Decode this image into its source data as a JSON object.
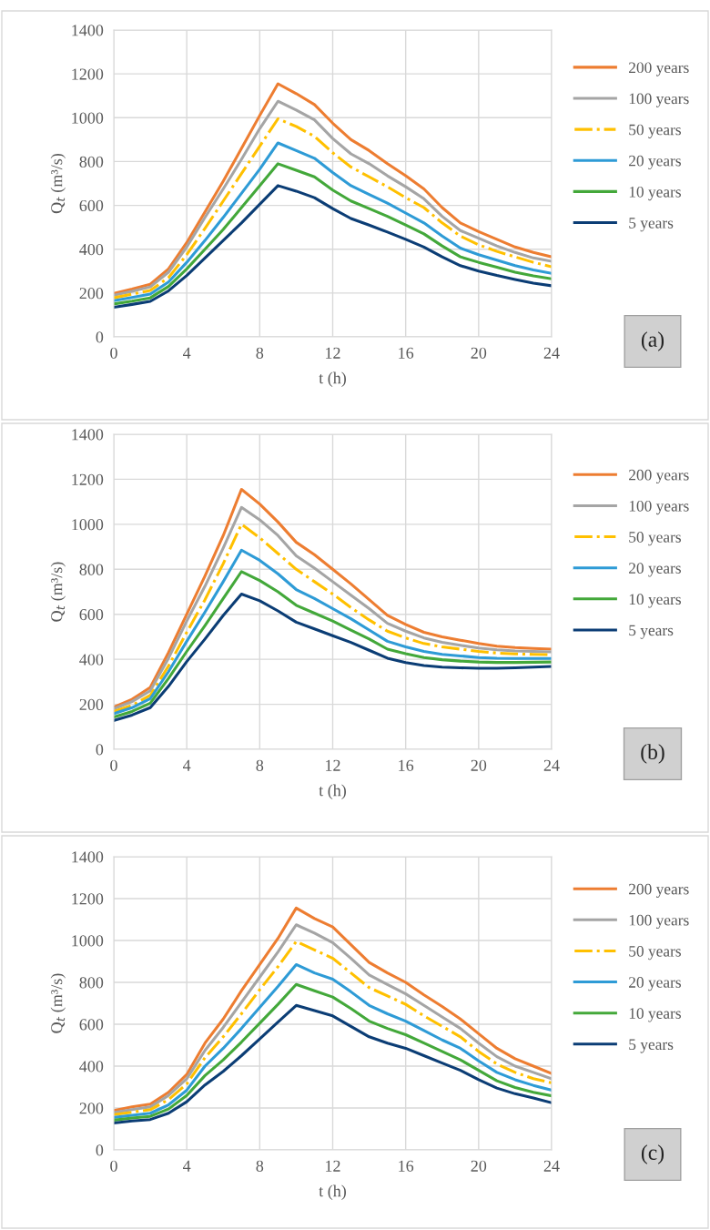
{
  "chart_data": [
    {
      "type": "line",
      "xlabel": "t (h)",
      "ylabel": "Q$_{t}$ (m³/s)",
      "xlim": [
        0,
        24
      ],
      "xticks": [
        0,
        4,
        8,
        12,
        16,
        20,
        24
      ],
      "ylim": [
        0,
        1400
      ],
      "yticks": [
        0,
        200,
        400,
        600,
        800,
        1000,
        1200,
        1400
      ],
      "grid": true,
      "legend": "right",
      "marker": "none",
      "annotations": [
        "(a)"
      ],
      "x": [
        0,
        1,
        2,
        3,
        4,
        5,
        6,
        7,
        8,
        9,
        10,
        11,
        12,
        13,
        14,
        15,
        16,
        17,
        18,
        19,
        20,
        21,
        22,
        23,
        24
      ],
      "series": [
        {
          "name": "200 years",
          "color": "#ed7d31",
          "values": [
            198,
            218,
            240,
            310,
            430,
            570,
            710,
            860,
            1010,
            1155,
            1110,
            1060,
            975,
            900,
            850,
            790,
            735,
            675,
            590,
            520,
            480,
            445,
            410,
            385,
            365
          ]
        },
        {
          "name": "100 years",
          "color": "#a5a5a5",
          "values": [
            190,
            208,
            228,
            295,
            410,
            545,
            675,
            810,
            950,
            1075,
            1035,
            990,
            905,
            835,
            790,
            735,
            685,
            630,
            550,
            485,
            450,
            415,
            385,
            360,
            345
          ]
        },
        {
          "name": "50 years",
          "color": "#ffc000",
          "line_style": "dashdot",
          "values": [
            178,
            195,
            212,
            270,
            375,
            495,
            620,
            745,
            870,
            995,
            960,
            915,
            840,
            775,
            730,
            685,
            635,
            590,
            520,
            460,
            420,
            390,
            365,
            340,
            320
          ]
        },
        {
          "name": "20 years",
          "color": "#2e9bd6",
          "values": [
            165,
            180,
            195,
            250,
            340,
            440,
            545,
            655,
            765,
            885,
            850,
            815,
            750,
            690,
            650,
            610,
            565,
            520,
            460,
            405,
            375,
            350,
            325,
            305,
            290
          ]
        },
        {
          "name": "10 years",
          "color": "#43a83a",
          "values": [
            150,
            163,
            178,
            230,
            310,
            400,
            490,
            590,
            690,
            790,
            760,
            730,
            670,
            620,
            585,
            550,
            510,
            470,
            415,
            365,
            340,
            318,
            295,
            278,
            265
          ]
        },
        {
          "name": "5 years",
          "color": "#0b3d75",
          "values": [
            135,
            148,
            162,
            210,
            280,
            360,
            440,
            520,
            605,
            690,
            665,
            635,
            585,
            540,
            510,
            478,
            445,
            410,
            365,
            325,
            300,
            280,
            262,
            245,
            233
          ]
        }
      ]
    },
    {
      "type": "line",
      "xlabel": "t (h)",
      "ylabel": "Q$_{t}$ (m³/s)",
      "xlim": [
        0,
        24
      ],
      "xticks": [
        0,
        4,
        8,
        12,
        16,
        20,
        24
      ],
      "ylim": [
        0,
        1400
      ],
      "yticks": [
        0,
        200,
        400,
        600,
        800,
        1000,
        1200,
        1400
      ],
      "grid": true,
      "legend": "right",
      "marker": "none",
      "annotations": [
        "(b)"
      ],
      "x": [
        0,
        1,
        2,
        3,
        4,
        5,
        6,
        7,
        8,
        9,
        10,
        11,
        12,
        13,
        14,
        15,
        16,
        17,
        18,
        19,
        20,
        21,
        22,
        23,
        24
      ],
      "series": [
        {
          "name": "200 years",
          "color": "#ed7d31",
          "values": [
            188,
            222,
            275,
            430,
            600,
            770,
            950,
            1155,
            1090,
            1010,
            920,
            865,
            800,
            735,
            665,
            595,
            555,
            520,
            500,
            485,
            470,
            458,
            452,
            448,
            445
          ]
        },
        {
          "name": "100 years",
          "color": "#a5a5a5",
          "values": [
            180,
            212,
            260,
            405,
            570,
            725,
            895,
            1075,
            1020,
            950,
            860,
            805,
            745,
            685,
            625,
            560,
            525,
            495,
            475,
            462,
            450,
            442,
            437,
            435,
            433
          ]
        },
        {
          "name": "50 years",
          "color": "#ffc000",
          "line_style": "dashdot",
          "values": [
            168,
            195,
            240,
            370,
            520,
            665,
            825,
            1000,
            940,
            870,
            800,
            745,
            690,
            630,
            575,
            525,
            495,
            470,
            455,
            445,
            435,
            428,
            424,
            422,
            420
          ]
        },
        {
          "name": "20 years",
          "color": "#2e9bd6",
          "values": [
            158,
            185,
            225,
            345,
            480,
            610,
            745,
            885,
            840,
            780,
            710,
            670,
            625,
            580,
            530,
            480,
            455,
            435,
            422,
            415,
            408,
            405,
            404,
            404,
            404
          ]
        },
        {
          "name": "10 years",
          "color": "#43a83a",
          "values": [
            143,
            168,
            205,
            315,
            435,
            550,
            670,
            790,
            750,
            700,
            640,
            605,
            570,
            530,
            490,
            445,
            425,
            408,
            398,
            392,
            388,
            386,
            386,
            387,
            388
          ]
        },
        {
          "name": "5 years",
          "color": "#0b3d75",
          "values": [
            128,
            152,
            185,
            280,
            390,
            490,
            595,
            690,
            660,
            615,
            565,
            535,
            505,
            475,
            440,
            405,
            385,
            372,
            365,
            362,
            360,
            360,
            362,
            365,
            368
          ]
        }
      ]
    },
    {
      "type": "line",
      "xlabel": "t (h)",
      "ylabel": "Q$_{t}$ (m³/s)",
      "xlim": [
        0,
        24
      ],
      "xticks": [
        0,
        4,
        8,
        12,
        16,
        20,
        24
      ],
      "ylim": [
        0,
        1400
      ],
      "yticks": [
        0,
        200,
        400,
        600,
        800,
        1000,
        1200,
        1400
      ],
      "grid": true,
      "legend": "right",
      "marker": "none",
      "annotations": [
        "(c)"
      ],
      "x": [
        0,
        1,
        2,
        3,
        4,
        5,
        6,
        7,
        8,
        9,
        10,
        11,
        12,
        13,
        14,
        15,
        16,
        17,
        18,
        19,
        20,
        21,
        22,
        23,
        24
      ],
      "series": [
        {
          "name": "200 years",
          "color": "#ed7d31",
          "values": [
            188,
            205,
            218,
            275,
            360,
            510,
            625,
            760,
            885,
            1010,
            1155,
            1105,
            1065,
            980,
            895,
            845,
            800,
            740,
            685,
            625,
            555,
            485,
            435,
            400,
            365
          ]
        },
        {
          "name": "100 years",
          "color": "#a5a5a5",
          "values": [
            178,
            192,
            205,
            260,
            340,
            475,
            585,
            705,
            825,
            945,
            1075,
            1035,
            990,
            915,
            835,
            790,
            745,
            690,
            635,
            580,
            510,
            445,
            400,
            370,
            340
          ]
        },
        {
          "name": "50 years",
          "color": "#ffc000",
          "line_style": "dashdot",
          "values": [
            168,
            180,
            192,
            240,
            315,
            440,
            540,
            650,
            765,
            875,
            995,
            955,
            915,
            845,
            775,
            735,
            695,
            640,
            590,
            540,
            470,
            410,
            370,
            340,
            320
          ]
        },
        {
          "name": "20 years",
          "color": "#2e9bd6",
          "values": [
            155,
            165,
            175,
            215,
            285,
            400,
            485,
            580,
            680,
            780,
            885,
            845,
            815,
            755,
            690,
            650,
            615,
            570,
            525,
            485,
            425,
            370,
            335,
            308,
            285
          ]
        },
        {
          "name": "10 years",
          "color": "#43a83a",
          "values": [
            142,
            152,
            160,
            195,
            260,
            355,
            430,
            515,
            605,
            695,
            790,
            760,
            730,
            675,
            615,
            580,
            550,
            510,
            470,
            430,
            380,
            330,
            298,
            275,
            258
          ]
        },
        {
          "name": "5 years",
          "color": "#0b3d75",
          "values": [
            128,
            138,
            145,
            175,
            230,
            310,
            375,
            450,
            530,
            610,
            690,
            665,
            640,
            590,
            540,
            510,
            485,
            450,
            415,
            380,
            335,
            295,
            268,
            248,
            225
          ]
        }
      ]
    }
  ]
}
